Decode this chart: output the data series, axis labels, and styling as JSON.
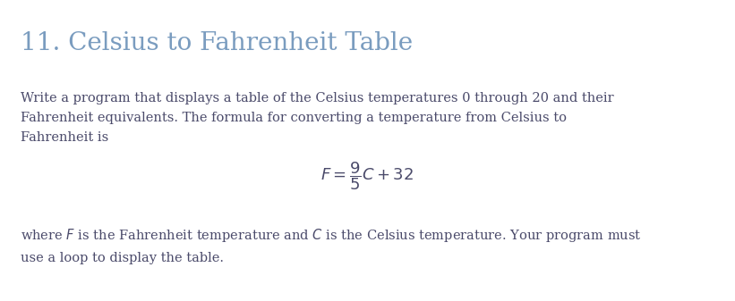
{
  "title": "11. Celsius to Fahrenheit Table",
  "title_color": "#7a9cbf",
  "title_fontsize": 20,
  "body_color": "#4a4a6a",
  "body_fontsize": 10.5,
  "background_color": "#ffffff",
  "para1": "Write a program that displays a table of the Celsius temperatures 0 through 20 and their\nFahrenheit equivalents. The formula for converting a temperature from Celsius to\nFahrenheit is",
  "formula": "$F = \\dfrac{9}{5}C + 32$",
  "formula_fontsize": 13,
  "para2": "where $F$ is the Fahrenheit temperature and $C$ is the Celsius temperature. Your program must\nuse a loop to display the table."
}
